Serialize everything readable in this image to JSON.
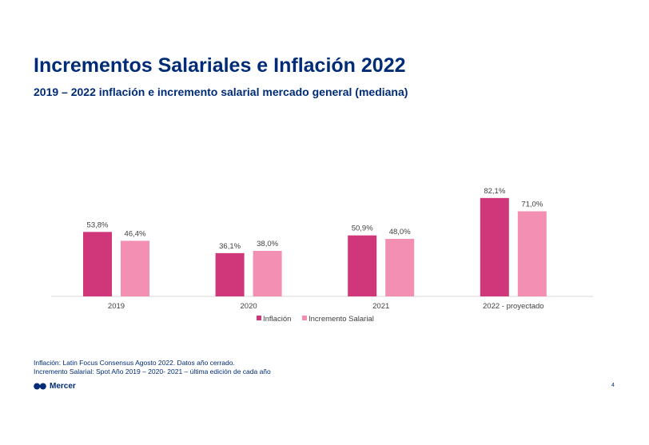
{
  "header": {
    "title": "Incrementos Salariales e Inflación 2022",
    "subtitle": "2019 – 2022 inflación e incremento salarial mercado general (mediana)"
  },
  "chart_data": {
    "type": "bar",
    "categories": [
      "2019",
      "2020",
      "2021",
      "2022 - proyectado"
    ],
    "series": [
      {
        "name": "Inflación",
        "values": [
          53.8,
          36.1,
          50.9,
          82.1
        ],
        "labels": [
          "53,8%",
          "36,1%",
          "50,9%",
          "82,1%"
        ],
        "color": "#d0367a"
      },
      {
        "name": "Incremento Salarial",
        "values": [
          46.4,
          38.0,
          48.0,
          71.0
        ],
        "labels": [
          "46,4%",
          "38,0%",
          "48,0%",
          "71,0%"
        ],
        "color": "#f28fb2"
      }
    ],
    "title": "",
    "xlabel": "",
    "ylabel": "",
    "ylim": [
      0,
      100
    ],
    "grid": false,
    "legend": "bottom-center"
  },
  "footnotes": {
    "line1": "Inflación: Latin Focus Consensus Agosto 2022. Datos año cerrado.",
    "line2": "Incremento Salarial: Spot Año 2019 – 2020- 2021 – última edición de cada año"
  },
  "branding": {
    "logo_text": "Mercer",
    "logo_color": "#002c77"
  },
  "page": {
    "number": "4"
  },
  "colors": {
    "title": "#002c77",
    "axis_line": "#d9d9d9",
    "label_text": "#404040"
  }
}
